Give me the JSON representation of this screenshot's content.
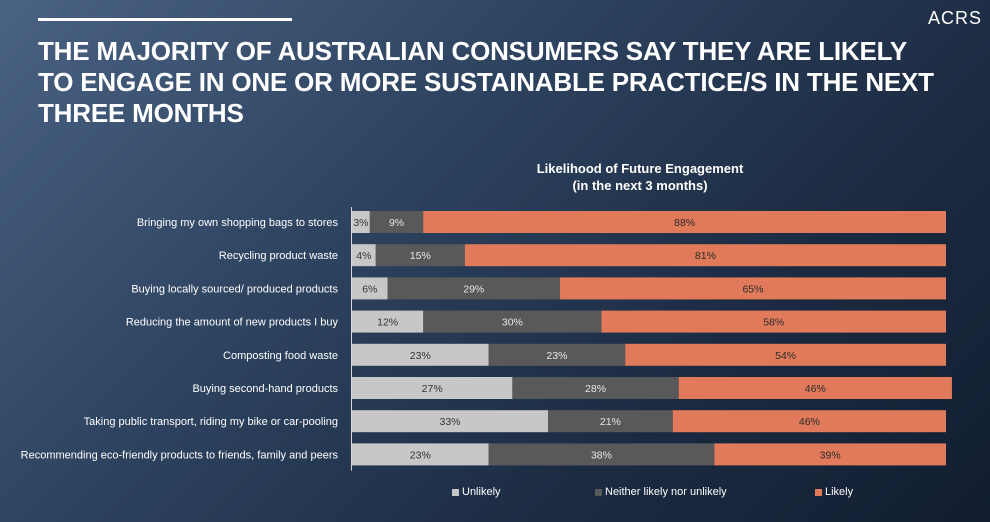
{
  "brand": "ACRS",
  "headline": "THE MAJORITY OF AUSTRALIAN CONSUMERS SAY THEY ARE LIKELY TO ENGAGE IN ONE OR MORE SUSTAINABLE PRACTICE/S IN THE NEXT THREE MONTHS",
  "colors": {
    "unlikely": "#c7c7c7",
    "neither": "#595959",
    "likely": "#e07a5a",
    "axis": "#d9d9d9"
  },
  "chart_data": {
    "type": "bar",
    "orientation": "horizontal",
    "stacked": "100%",
    "title": "Likelihood of Future Engagement",
    "subtitle": "(in the next 3 months)",
    "categories": [
      "Bringing my own shopping bags to stores",
      "Recycling product waste",
      "Buying locally sourced/ produced products",
      "Reducing the amount of new products I buy",
      "Composting food waste",
      "Buying second-hand products",
      "Taking public transport, riding my bike or car-pooling",
      "Recommending eco-friendly products to friends, family and peers"
    ],
    "series": [
      {
        "name": "Unlikely",
        "values": [
          3,
          4,
          6,
          12,
          23,
          27,
          33,
          23
        ]
      },
      {
        "name": "Neither likely nor unlikely",
        "values": [
          9,
          15,
          29,
          30,
          23,
          28,
          21,
          38
        ]
      },
      {
        "name": "Likely",
        "values": [
          88,
          81,
          65,
          58,
          54,
          46,
          46,
          39
        ]
      }
    ],
    "value_suffix": "%",
    "legend_position": "bottom"
  }
}
